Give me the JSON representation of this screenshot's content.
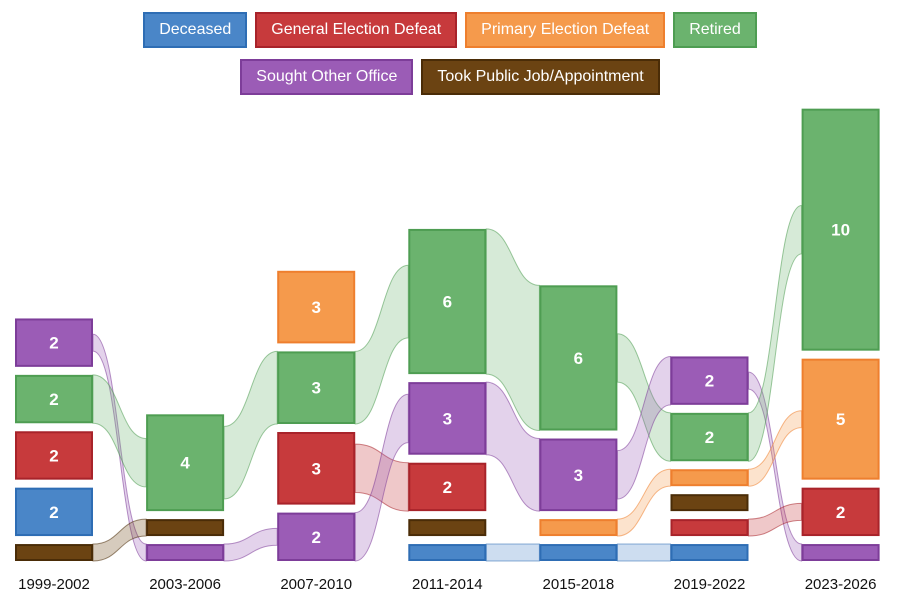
{
  "legend": [
    {
      "label": "Deceased",
      "color": "#4a86c8",
      "border": "#2e6db4"
    },
    {
      "label": "General Election Defeat",
      "color": "#c73a3c",
      "border": "#a8232a"
    },
    {
      "label": "Primary Election Defeat",
      "color": "#f59a4c",
      "border": "#ee7f2e"
    },
    {
      "label": "Retired",
      "color": "#6bb36e",
      "border": "#4e9d52"
    },
    {
      "label": "Sought Other Office",
      "color": "#9b5cb6",
      "border": "#7d3d99"
    },
    {
      "label": "Took Public Job/Appointment",
      "color": "#6b4312",
      "border": "#4a2c07"
    }
  ],
  "chart_data": {
    "type": "sankey",
    "periods": [
      "1999-2002",
      "2003-2006",
      "2007-2010",
      "2011-2014",
      "2015-2018",
      "2019-2022",
      "2023-2026"
    ],
    "categories": [
      "Deceased",
      "General Election Defeat",
      "Primary Election Defeat",
      "Retired",
      "Sought Other Office",
      "Took Public Job/Appointment"
    ],
    "columns": [
      [
        {
          "category": "Sought Other Office",
          "value": 2,
          "label": "2"
        },
        {
          "category": "Retired",
          "value": 2,
          "label": "2"
        },
        {
          "category": "General Election Defeat",
          "value": 2,
          "label": "2"
        },
        {
          "category": "Deceased",
          "value": 2,
          "label": "2"
        },
        {
          "category": "Took Public Job/Appointment",
          "value": 0.7,
          "label": ""
        }
      ],
      [
        {
          "category": "Retired",
          "value": 4,
          "label": "4"
        },
        {
          "category": "Took Public Job/Appointment",
          "value": 0.7,
          "label": ""
        },
        {
          "category": "Sought Other Office",
          "value": 0.7,
          "label": ""
        }
      ],
      [
        {
          "category": "Primary Election Defeat",
          "value": 3,
          "label": "3"
        },
        {
          "category": "Retired",
          "value": 3,
          "label": "3"
        },
        {
          "category": "General Election Defeat",
          "value": 3,
          "label": "3"
        },
        {
          "category": "Sought Other Office",
          "value": 2,
          "label": "2"
        }
      ],
      [
        {
          "category": "Retired",
          "value": 6,
          "label": "6"
        },
        {
          "category": "Sought Other Office",
          "value": 3,
          "label": "3"
        },
        {
          "category": "General Election Defeat",
          "value": 2,
          "label": "2"
        },
        {
          "category": "Took Public Job/Appointment",
          "value": 0.7,
          "label": ""
        },
        {
          "category": "Deceased",
          "value": 0.7,
          "label": ""
        }
      ],
      [
        {
          "category": "Retired",
          "value": 6,
          "label": "6"
        },
        {
          "category": "Sought Other Office",
          "value": 3,
          "label": "3"
        },
        {
          "category": "Primary Election Defeat",
          "value": 0.7,
          "label": ""
        },
        {
          "category": "Deceased",
          "value": 0.7,
          "label": ""
        }
      ],
      [
        {
          "category": "Sought Other Office",
          "value": 2,
          "label": "2"
        },
        {
          "category": "Retired",
          "value": 2,
          "label": "2"
        },
        {
          "category": "Primary Election Defeat",
          "value": 0.7,
          "label": ""
        },
        {
          "category": "Took Public Job/Appointment",
          "value": 0.7,
          "label": ""
        },
        {
          "category": "General Election Defeat",
          "value": 0.7,
          "label": ""
        },
        {
          "category": "Deceased",
          "value": 0.7,
          "label": ""
        }
      ],
      [
        {
          "category": "Retired",
          "value": 10,
          "label": "10"
        },
        {
          "category": "Primary Election Defeat",
          "value": 5,
          "label": "5"
        },
        {
          "category": "General Election Defeat",
          "value": 2,
          "label": "2"
        },
        {
          "category": "Sought Other Office",
          "value": 0.7,
          "label": ""
        }
      ]
    ]
  }
}
